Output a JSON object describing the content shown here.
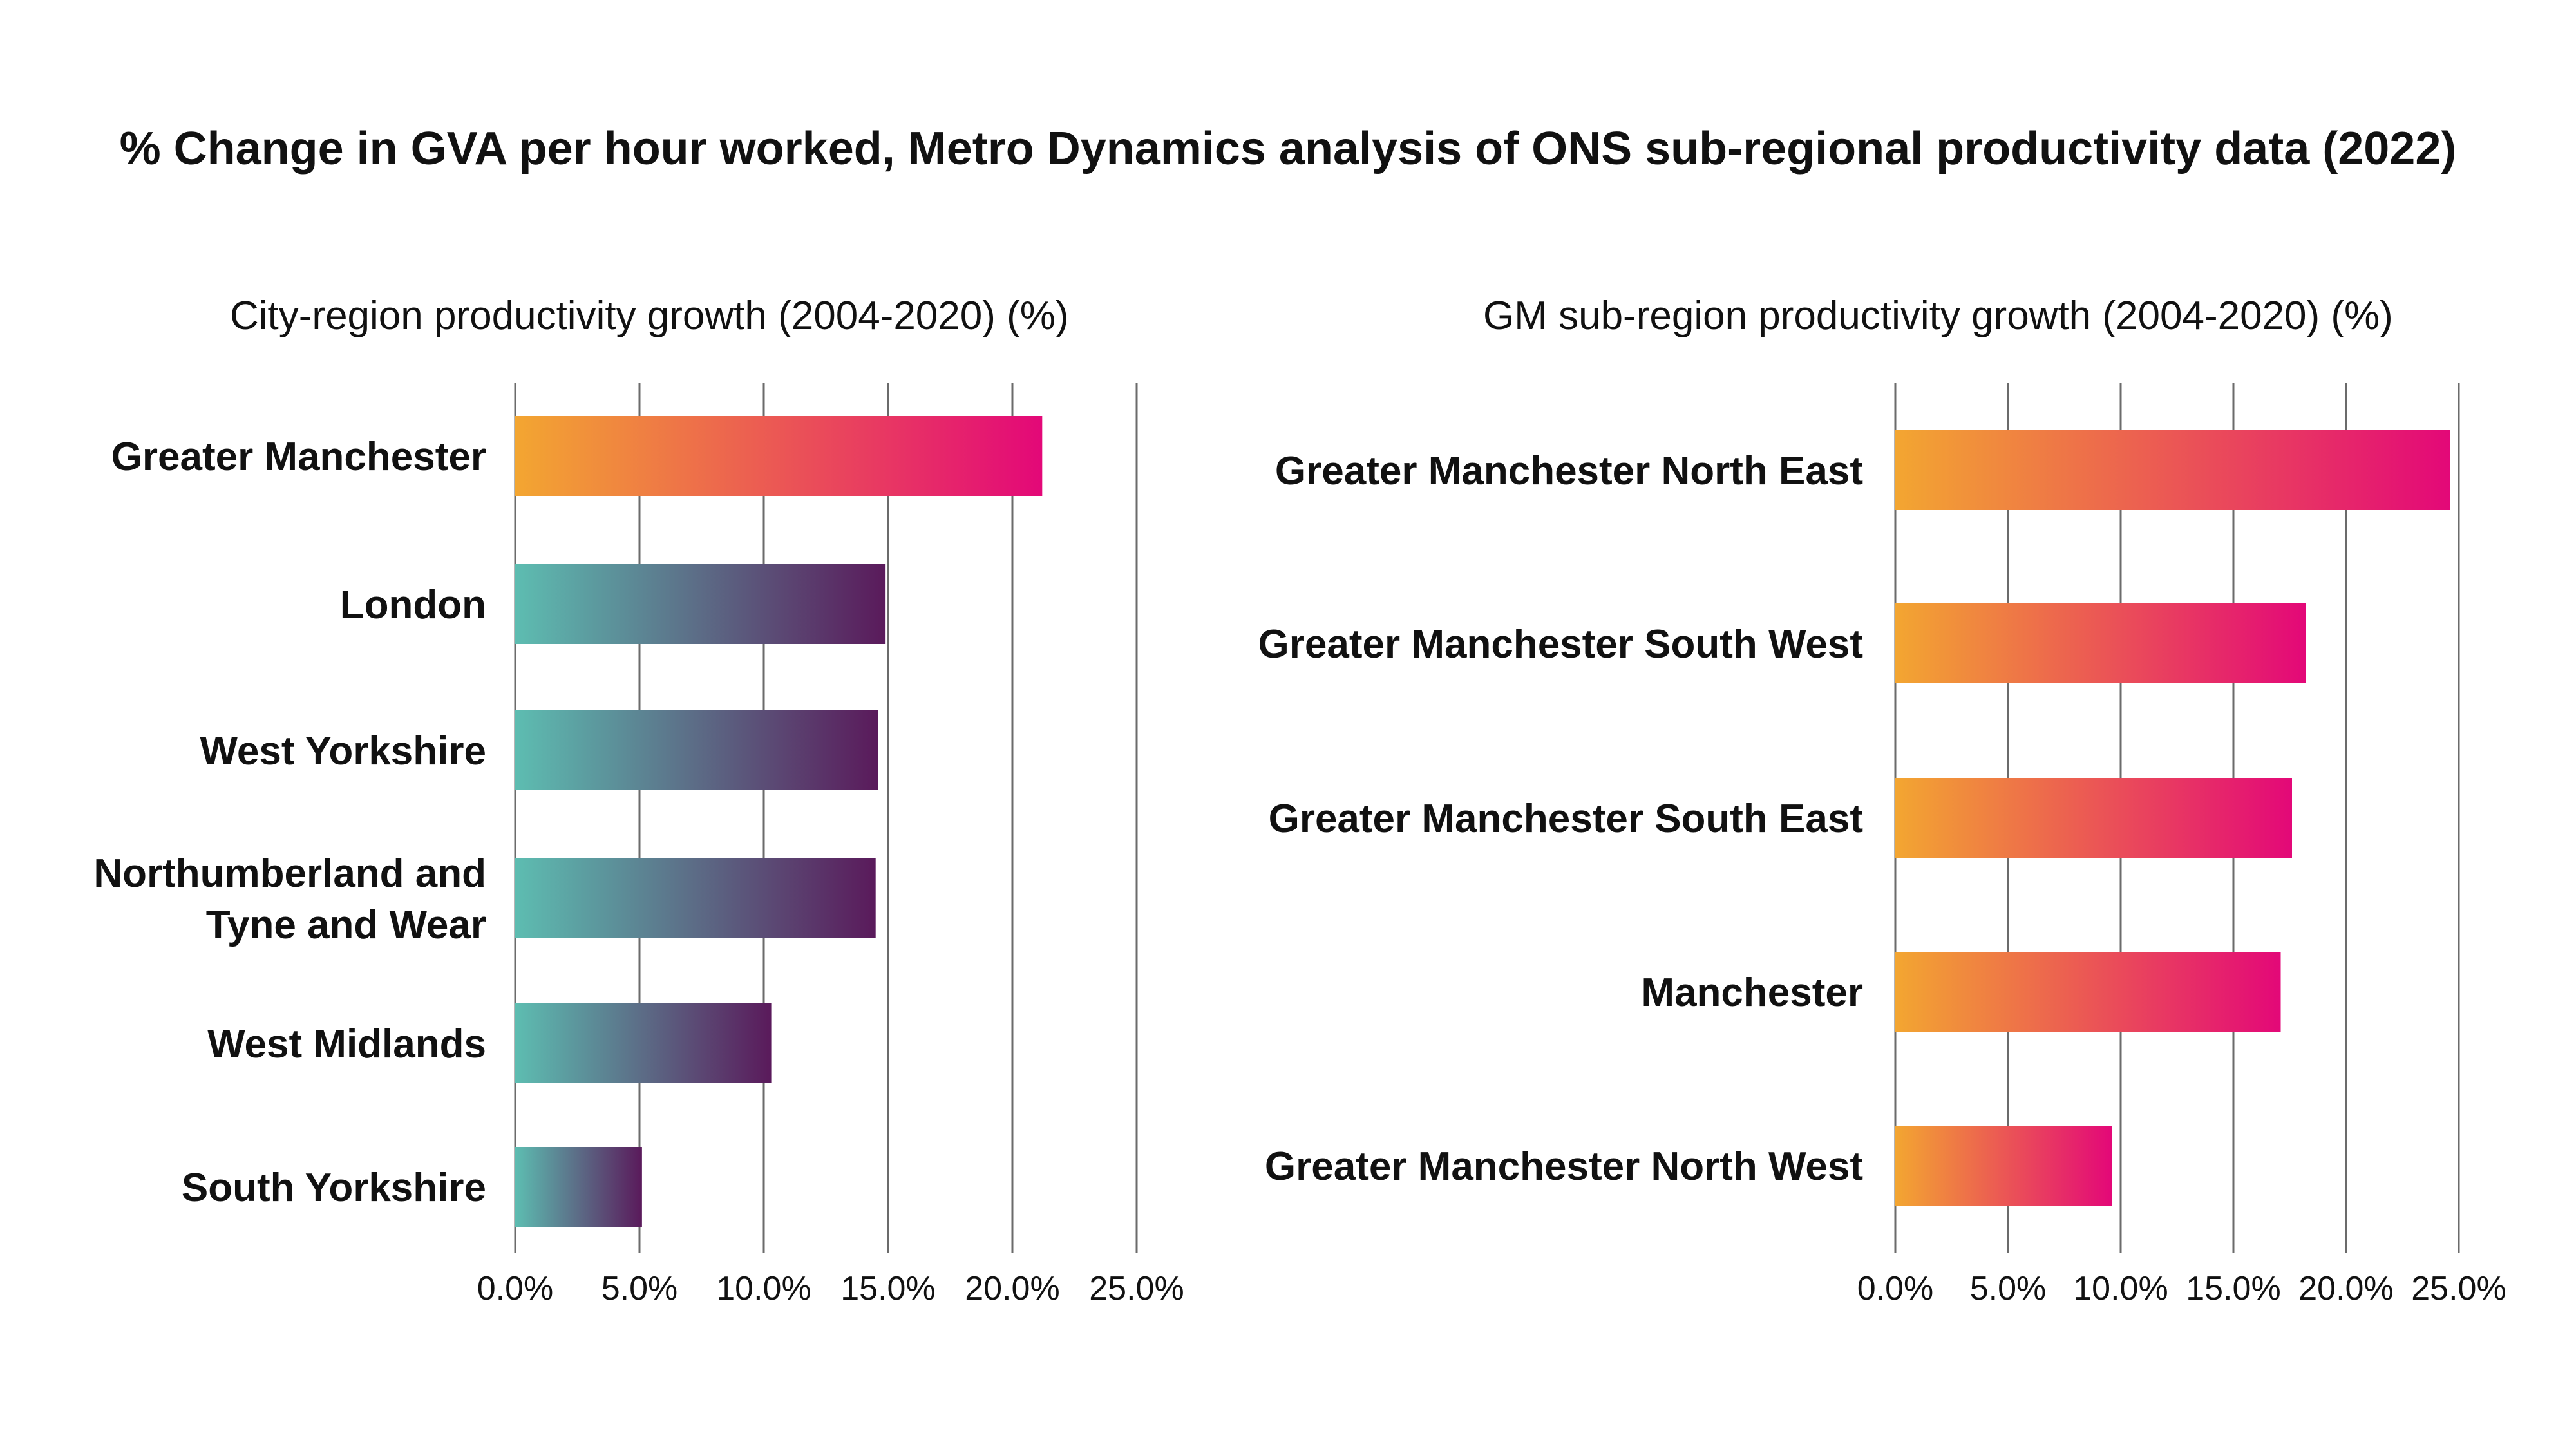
{
  "title": "% Change in GVA per hour worked, Metro Dynamics analysis of ONS sub-regional productivity data (2022)",
  "chart_data": [
    {
      "type": "bar",
      "orientation": "horizontal",
      "title": "City-region productivity growth (2004-2020) (%)",
      "xlabel": "",
      "ylabel": "",
      "categories": [
        "Greater Manchester",
        "London",
        "West Yorkshire",
        "Northumberland and Tyne and Wear",
        "West Midlands",
        "South Yorkshire"
      ],
      "category_lines": [
        [
          "Greater Manchester"
        ],
        [
          "London"
        ],
        [
          "West Yorkshire"
        ],
        [
          "Northumberland and",
          "Tyne and Wear"
        ],
        [
          "West Midlands"
        ],
        [
          "South Yorkshire"
        ]
      ],
      "values": [
        21.2,
        14.9,
        14.6,
        14.5,
        10.3,
        5.1
      ],
      "xlim": [
        0,
        25
      ],
      "xticks": [
        "0.0%",
        "5.0%",
        "10.0%",
        "15.0%",
        "20.0%",
        "25.0%"
      ],
      "grid": true,
      "legend": "none",
      "bar_colors": [
        [
          "#f3a631",
          "#e30878"
        ],
        [
          "#5dbdb1",
          "#5a1a5b"
        ],
        [
          "#5dbdb1",
          "#5a1a5b"
        ],
        [
          "#5dbdb1",
          "#5a1a5b"
        ],
        [
          "#5dbdb1",
          "#5a1a5b"
        ],
        [
          "#5dbdb1",
          "#5a1a5b"
        ]
      ]
    },
    {
      "type": "bar",
      "orientation": "horizontal",
      "title": "GM sub-region productivity growth (2004-2020) (%)",
      "xlabel": "",
      "ylabel": "",
      "categories": [
        "Greater Manchester North East",
        "Greater Manchester South West",
        "Greater Manchester South East",
        "Manchester",
        "Greater Manchester North West"
      ],
      "category_lines": [
        [
          "Greater Manchester North East"
        ],
        [
          "Greater Manchester South West"
        ],
        [
          "Greater Manchester South East"
        ],
        [
          "Manchester"
        ],
        [
          "Greater Manchester North West"
        ]
      ],
      "values": [
        24.6,
        18.2,
        17.6,
        17.1,
        9.6
      ],
      "xlim": [
        0,
        25
      ],
      "xticks": [
        "0.0%",
        "5.0%",
        "10.0%",
        "15.0%",
        "20.0%",
        "25.0%"
      ],
      "grid": true,
      "legend": "none",
      "bar_colors": [
        [
          "#f3a631",
          "#e30878"
        ],
        [
          "#f3a631",
          "#e30878"
        ],
        [
          "#f3a631",
          "#e30878"
        ],
        [
          "#f3a631",
          "#e30878"
        ],
        [
          "#f3a631",
          "#e30878"
        ]
      ]
    }
  ]
}
